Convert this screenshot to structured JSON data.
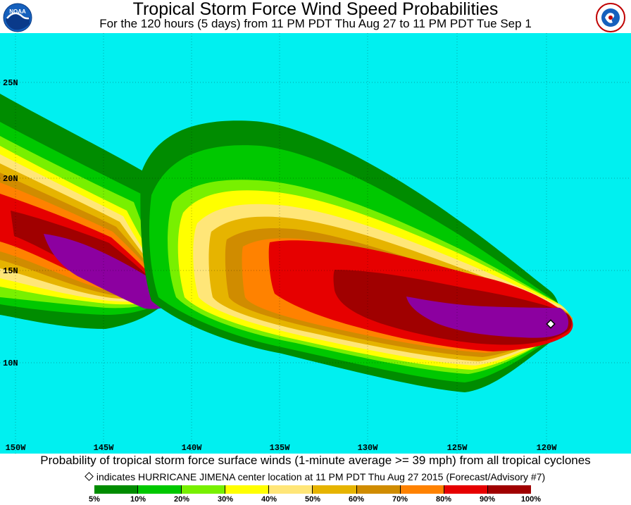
{
  "header": {
    "title": "Tropical Storm Force Wind Speed Probabilities",
    "subtitle": "For the 120 hours (5 days) from 11 PM PDT Thu Aug 27 to 11 PM PDT Tue Sep 1",
    "left_logo": "noaa-logo",
    "right_logo": "national-weather-service-logo"
  },
  "map": {
    "ocean_color": "#00f0f0",
    "lat_labels": [
      "25N",
      "20N",
      "15N",
      "10N"
    ],
    "lon_labels": [
      "150W",
      "145W",
      "140W",
      "135W",
      "130W",
      "125W",
      "120W"
    ],
    "storm_marker": "storm-center-diamond"
  },
  "footer": {
    "caption": "Probability of tropical storm force surface winds (1-minute average >= 39 mph) from all tropical cyclones",
    "note": "indicates HURRICANE JIMENA center location at 11 PM PDT Thu Aug 27 2015 (Forecast/Advisory #7)"
  },
  "legend": {
    "labels": [
      "5%",
      "10%",
      "20%",
      "30%",
      "40%",
      "50%",
      "60%",
      "70%",
      "80%",
      "90%",
      "100%"
    ],
    "colors": [
      "#008c00",
      "#00c800",
      "#78f000",
      "#ffff00",
      "#ffe678",
      "#e6b400",
      "#d08c00",
      "#ff8200",
      "#e60000",
      "#a00000",
      "#8c00a0"
    ]
  }
}
